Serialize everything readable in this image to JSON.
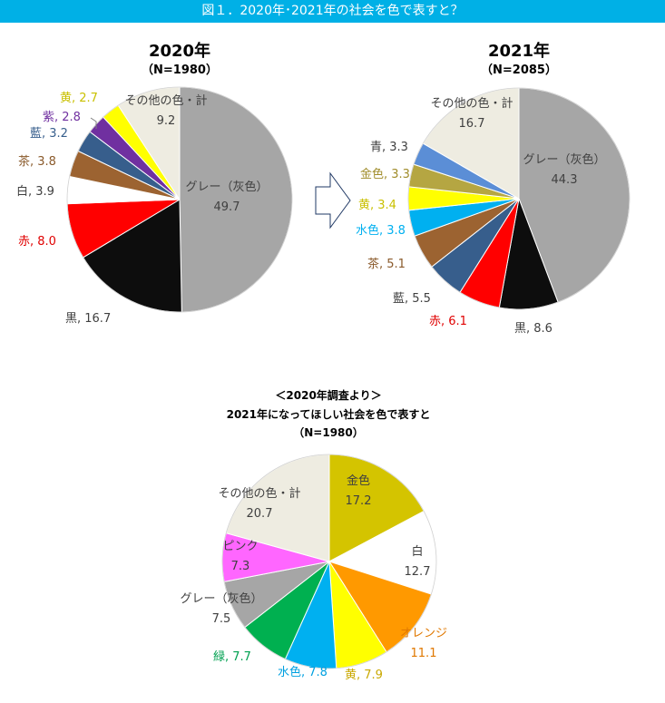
{
  "figure_title": "図１．2020年･2021年の社会を色で表すと？",
  "arrow": {
    "fill": "#ffffff",
    "stroke": "#1f3864"
  },
  "chart_data": [
    {
      "type": "pie",
      "title": "2020年",
      "subtitle": "（N=1980）",
      "slices": [
        {
          "label": "グレー（灰色）",
          "value": 49.7,
          "color": "#a6a6a6",
          "label_color": "#404040"
        },
        {
          "label": "黒",
          "value": 16.7,
          "color": "#0d0d0d",
          "label_color": "#404040"
        },
        {
          "label": "赤",
          "value": 8.0,
          "color": "#ff0000",
          "label_color": "#e00000"
        },
        {
          "label": "白",
          "value": 3.9,
          "color": "#ffffff",
          "label_color": "#404040"
        },
        {
          "label": "茶",
          "value": 3.8,
          "color": "#9c6331",
          "label_color": "#8a5a2b"
        },
        {
          "label": "藍",
          "value": 3.2,
          "color": "#375e8c",
          "label_color": "#375e8c"
        },
        {
          "label": "紫",
          "value": 2.8,
          "color": "#7030a0",
          "label_color": "#7030a0"
        },
        {
          "label": "黄",
          "value": 2.7,
          "color": "#ffff00",
          "label_color": "#c9c000"
        },
        {
          "label": "その他の色・計",
          "value": 9.2,
          "color": "#eeece1",
          "label_color": "#404040"
        }
      ]
    },
    {
      "type": "pie",
      "title": "2021年",
      "subtitle": "（N=2085）",
      "slices": [
        {
          "label": "グレー（灰色）",
          "value": 44.3,
          "color": "#a6a6a6",
          "label_color": "#404040"
        },
        {
          "label": "黒",
          "value": 8.6,
          "color": "#0d0d0d",
          "label_color": "#404040"
        },
        {
          "label": "赤",
          "value": 6.1,
          "color": "#ff0000",
          "label_color": "#e00000"
        },
        {
          "label": "藍",
          "value": 5.5,
          "color": "#375e8c",
          "label_color": "#404040"
        },
        {
          "label": "茶",
          "value": 5.1,
          "color": "#9c6331",
          "label_color": "#8a5a2b"
        },
        {
          "label": "水色",
          "value": 3.8,
          "color": "#00b0f0",
          "label_color": "#00b0f0"
        },
        {
          "label": "黄",
          "value": 3.4,
          "color": "#ffff00",
          "label_color": "#c9c000"
        },
        {
          "label": "金色",
          "value": 3.3,
          "color": "#b5a642",
          "label_color": "#a08c2a"
        },
        {
          "label": "青",
          "value": 3.3,
          "color": "#5b8ed6",
          "label_color": "#404040"
        },
        {
          "label": "その他の色・計",
          "value": 16.7,
          "color": "#eeece1",
          "label_color": "#404040"
        }
      ]
    },
    {
      "type": "pie",
      "title": "＜2020年調査より＞",
      "subtitle": "2021年になってほしい社会を色で表すと",
      "subtitle2": "（N=1980）",
      "slices": [
        {
          "label": "金色",
          "value": 17.2,
          "color": "#d4c400",
          "label_color": "#404040"
        },
        {
          "label": "白",
          "value": 12.7,
          "color": "#ffffff",
          "label_color": "#404040"
        },
        {
          "label": "オレンジ",
          "value": 11.1,
          "color": "#ff9900",
          "label_color": "#e07800"
        },
        {
          "label": "黄",
          "value": 7.9,
          "color": "#ffff00",
          "label_color": "#c9a800"
        },
        {
          "label": "水色",
          "value": 7.8,
          "color": "#00b0f0",
          "label_color": "#00a0e0"
        },
        {
          "label": "緑",
          "value": 7.7,
          "color": "#00b050",
          "label_color": "#00a050"
        },
        {
          "label": "グレー（灰色）",
          "value": 7.5,
          "color": "#a6a6a6",
          "label_color": "#404040"
        },
        {
          "label": "ピンク",
          "value": 7.3,
          "color": "#ff66ff",
          "label_color": "#404040"
        },
        {
          "label": "その他の色・計",
          "value": 20.7,
          "color": "#eeece1",
          "label_color": "#404040"
        }
      ]
    }
  ]
}
